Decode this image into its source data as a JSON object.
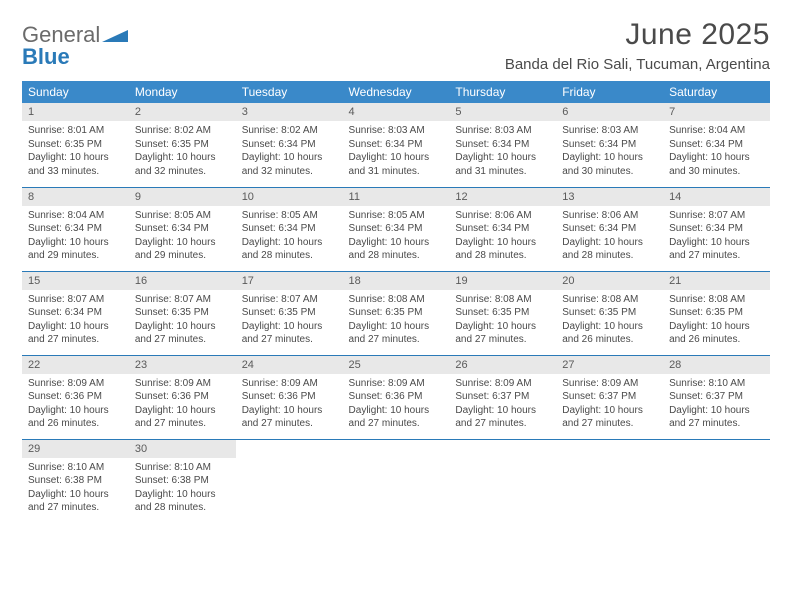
{
  "logo": {
    "general": "General",
    "blue": "Blue"
  },
  "title": "June 2025",
  "location": "Banda del Rio Sali, Tucuman, Argentina",
  "colors": {
    "header_bg": "#3a89c9",
    "header_text": "#ffffff",
    "daynum_bg": "#e8e8e8",
    "row_border": "#2a7ab8",
    "text_color": "#4a4a4a",
    "logo_blue": "#2a7ab8",
    "logo_gray": "#6b6b6b"
  },
  "weekdays": [
    "Sunday",
    "Monday",
    "Tuesday",
    "Wednesday",
    "Thursday",
    "Friday",
    "Saturday"
  ],
  "days": [
    {
      "n": "1",
      "sr": "8:01 AM",
      "ss": "6:35 PM",
      "dl": "10 hours and 33 minutes."
    },
    {
      "n": "2",
      "sr": "8:02 AM",
      "ss": "6:35 PM",
      "dl": "10 hours and 32 minutes."
    },
    {
      "n": "3",
      "sr": "8:02 AM",
      "ss": "6:34 PM",
      "dl": "10 hours and 32 minutes."
    },
    {
      "n": "4",
      "sr": "8:03 AM",
      "ss": "6:34 PM",
      "dl": "10 hours and 31 minutes."
    },
    {
      "n": "5",
      "sr": "8:03 AM",
      "ss": "6:34 PM",
      "dl": "10 hours and 31 minutes."
    },
    {
      "n": "6",
      "sr": "8:03 AM",
      "ss": "6:34 PM",
      "dl": "10 hours and 30 minutes."
    },
    {
      "n": "7",
      "sr": "8:04 AM",
      "ss": "6:34 PM",
      "dl": "10 hours and 30 minutes."
    },
    {
      "n": "8",
      "sr": "8:04 AM",
      "ss": "6:34 PM",
      "dl": "10 hours and 29 minutes."
    },
    {
      "n": "9",
      "sr": "8:05 AM",
      "ss": "6:34 PM",
      "dl": "10 hours and 29 minutes."
    },
    {
      "n": "10",
      "sr": "8:05 AM",
      "ss": "6:34 PM",
      "dl": "10 hours and 28 minutes."
    },
    {
      "n": "11",
      "sr": "8:05 AM",
      "ss": "6:34 PM",
      "dl": "10 hours and 28 minutes."
    },
    {
      "n": "12",
      "sr": "8:06 AM",
      "ss": "6:34 PM",
      "dl": "10 hours and 28 minutes."
    },
    {
      "n": "13",
      "sr": "8:06 AM",
      "ss": "6:34 PM",
      "dl": "10 hours and 28 minutes."
    },
    {
      "n": "14",
      "sr": "8:07 AM",
      "ss": "6:34 PM",
      "dl": "10 hours and 27 minutes."
    },
    {
      "n": "15",
      "sr": "8:07 AM",
      "ss": "6:34 PM",
      "dl": "10 hours and 27 minutes."
    },
    {
      "n": "16",
      "sr": "8:07 AM",
      "ss": "6:35 PM",
      "dl": "10 hours and 27 minutes."
    },
    {
      "n": "17",
      "sr": "8:07 AM",
      "ss": "6:35 PM",
      "dl": "10 hours and 27 minutes."
    },
    {
      "n": "18",
      "sr": "8:08 AM",
      "ss": "6:35 PM",
      "dl": "10 hours and 27 minutes."
    },
    {
      "n": "19",
      "sr": "8:08 AM",
      "ss": "6:35 PM",
      "dl": "10 hours and 27 minutes."
    },
    {
      "n": "20",
      "sr": "8:08 AM",
      "ss": "6:35 PM",
      "dl": "10 hours and 26 minutes."
    },
    {
      "n": "21",
      "sr": "8:08 AM",
      "ss": "6:35 PM",
      "dl": "10 hours and 26 minutes."
    },
    {
      "n": "22",
      "sr": "8:09 AM",
      "ss": "6:36 PM",
      "dl": "10 hours and 26 minutes."
    },
    {
      "n": "23",
      "sr": "8:09 AM",
      "ss": "6:36 PM",
      "dl": "10 hours and 27 minutes."
    },
    {
      "n": "24",
      "sr": "8:09 AM",
      "ss": "6:36 PM",
      "dl": "10 hours and 27 minutes."
    },
    {
      "n": "25",
      "sr": "8:09 AM",
      "ss": "6:36 PM",
      "dl": "10 hours and 27 minutes."
    },
    {
      "n": "26",
      "sr": "8:09 AM",
      "ss": "6:37 PM",
      "dl": "10 hours and 27 minutes."
    },
    {
      "n": "27",
      "sr": "8:09 AM",
      "ss": "6:37 PM",
      "dl": "10 hours and 27 minutes."
    },
    {
      "n": "28",
      "sr": "8:10 AM",
      "ss": "6:37 PM",
      "dl": "10 hours and 27 minutes."
    },
    {
      "n": "29",
      "sr": "8:10 AM",
      "ss": "6:38 PM",
      "dl": "10 hours and 27 minutes."
    },
    {
      "n": "30",
      "sr": "8:10 AM",
      "ss": "6:38 PM",
      "dl": "10 hours and 28 minutes."
    }
  ],
  "labels": {
    "sunrise": "Sunrise:",
    "sunset": "Sunset:",
    "daylight": "Daylight:"
  }
}
